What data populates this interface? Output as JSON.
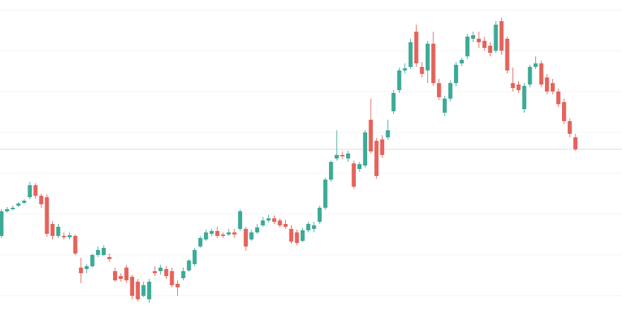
{
  "chart_data": {
    "type": "candlestick",
    "open": [
      135,
      170,
      173,
      178,
      182,
      190,
      207,
      192,
      190,
      152,
      135,
      135,
      133,
      135,
      90,
      88,
      92,
      108,
      108,
      105,
      85,
      78,
      90,
      77,
      70,
      50,
      45,
      85,
      85,
      88,
      85,
      67,
      75,
      86,
      95,
      120,
      130,
      138,
      142,
      137,
      137,
      140,
      145,
      145,
      130,
      140,
      150,
      157,
      160,
      157,
      152,
      145,
      140,
      128,
      143,
      145,
      155,
      175,
      215,
      245,
      250,
      245,
      238,
      230,
      235,
      300,
      270,
      272,
      275,
      312,
      342,
      370,
      375,
      425,
      375,
      370,
      408,
      352,
      310,
      330,
      352,
      380,
      390,
      415,
      415,
      412,
      405,
      398,
      440,
      415,
      352,
      350,
      315,
      350,
      375,
      380,
      360,
      352,
      340,
      325,
      298,
      275
    ],
    "high": [
      173,
      176,
      178,
      183,
      187,
      212,
      210,
      195,
      194,
      156,
      152,
      140,
      140,
      137,
      104,
      95,
      110,
      120,
      122,
      110,
      90,
      82,
      94,
      80,
      74,
      70,
      74,
      92,
      94,
      92,
      90,
      72,
      90,
      102,
      118,
      135,
      144,
      145,
      148,
      140,
      145,
      145,
      173,
      148,
      144,
      152,
      162,
      165,
      164,
      160,
      158,
      150,
      144,
      146,
      155,
      155,
      178,
      218,
      242,
      285,
      255,
      256,
      242,
      240,
      285,
      330,
      274,
      278,
      300,
      342,
      374,
      380,
      415,
      435,
      382,
      412,
      425,
      358,
      334,
      356,
      382,
      388,
      422,
      425,
      425,
      418,
      410,
      440,
      445,
      418,
      374,
      355,
      352,
      378,
      390,
      384,
      365,
      358,
      344,
      330,
      302,
      280
    ],
    "low": [
      132,
      168,
      171,
      176,
      181,
      187,
      188,
      175,
      134,
      130,
      132,
      130,
      130,
      108,
      68,
      82,
      90,
      105,
      106,
      98,
      70,
      70,
      68,
      45,
      42,
      48,
      40,
      78,
      80,
      74,
      62,
      50,
      72,
      84,
      92,
      118,
      128,
      135,
      132,
      132,
      135,
      132,
      142,
      114,
      128,
      138,
      148,
      154,
      152,
      147,
      145,
      124,
      122,
      126,
      140,
      140,
      152,
      172,
      212,
      242,
      244,
      240,
      202,
      226,
      232,
      252,
      216,
      246,
      272,
      308,
      338,
      366,
      372,
      375,
      360,
      352,
      348,
      328,
      305,
      326,
      348,
      376,
      386,
      410,
      402,
      398,
      390,
      395,
      392,
      366,
      340,
      338,
      310,
      346,
      372,
      346,
      336,
      336,
      318,
      294,
      275,
      256
    ],
    "close": [
      170,
      173,
      175,
      181,
      185,
      207,
      192,
      180,
      138,
      135,
      148,
      133,
      136,
      110,
      82,
      92,
      108,
      115,
      118,
      102,
      72,
      74,
      72,
      50,
      45,
      65,
      70,
      82,
      90,
      78,
      65,
      62,
      85,
      100,
      115,
      132,
      140,
      142,
      135,
      135,
      140,
      137,
      170,
      120,
      140,
      147,
      157,
      160,
      155,
      150,
      148,
      127,
      125,
      143,
      152,
      150,
      175,
      215,
      240,
      250,
      248,
      252,
      205,
      237,
      282,
      255,
      220,
      250,
      285,
      338,
      370,
      373,
      410,
      380,
      365,
      408,
      352,
      332,
      330,
      352,
      378,
      385,
      418,
      420,
      410,
      402,
      395,
      435,
      398,
      370,
      345,
      342,
      348,
      375,
      380,
      350,
      340,
      340,
      322,
      298,
      280,
      258
    ],
    "up_color": "#3daa96",
    "down_color": "#e5635b",
    "ylim": [
      0,
      470
    ],
    "yticks": [
      50,
      108,
      166,
      224,
      282,
      340,
      398,
      456
    ],
    "grid": true
  }
}
